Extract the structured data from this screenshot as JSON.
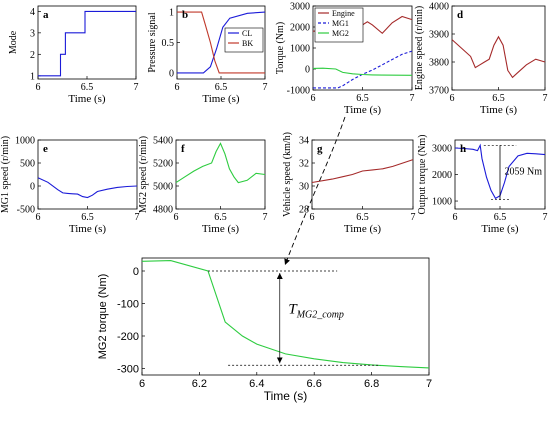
{
  "chart_data": [
    {
      "id": "a",
      "type": "line",
      "panel_label": "a",
      "xlabel": "Time (s)",
      "ylabel": "Mode",
      "xlim": [
        6,
        7
      ],
      "ylim": [
        0.85,
        4.25
      ],
      "xticks": [
        "6",
        "6.5",
        "7"
      ],
      "yticks": [
        "1",
        "2",
        "3",
        "4"
      ],
      "ytick_values": [
        1,
        2,
        3,
        4
      ],
      "series": [
        {
          "color": "#1b1bd8",
          "style": "solid",
          "x": [
            6,
            6.23,
            6.23,
            6.28,
            6.28,
            6.48,
            6.48,
            7
          ],
          "y": [
            1,
            1,
            2,
            2,
            3,
            3,
            4,
            4
          ]
        }
      ]
    },
    {
      "id": "b",
      "type": "line",
      "panel_label": "b",
      "xlabel": "Time (s)",
      "ylabel": "Pressure signal",
      "xlim": [
        6,
        7
      ],
      "ylim": [
        -0.1,
        1.1
      ],
      "xticks": [
        "6",
        "6.5",
        "7"
      ],
      "yticks": [
        "0",
        "0.5",
        "1"
      ],
      "ytick_values": [
        0,
        0.5,
        1
      ],
      "legend": {
        "position": "right",
        "entries": [
          "CL",
          "BK"
        ]
      },
      "series": [
        {
          "name": "CL",
          "color": "#1b1bd8",
          "style": "solid",
          "x": [
            6,
            6.3,
            6.38,
            6.45,
            6.52,
            6.6,
            6.8,
            7
          ],
          "y": [
            0,
            0,
            0.1,
            0.4,
            0.75,
            0.9,
            0.98,
            1
          ]
        },
        {
          "name": "BK",
          "color": "#c0392b",
          "style": "solid",
          "x": [
            6,
            6.28,
            6.32,
            6.38,
            6.43,
            6.48,
            7
          ],
          "y": [
            1,
            1,
            0.8,
            0.5,
            0.2,
            0,
            0
          ]
        }
      ]
    },
    {
      "id": "c",
      "type": "line",
      "panel_label": "c",
      "xlabel": "Time (s)",
      "ylabel": "Torque (Nm)",
      "xlim": [
        6,
        7
      ],
      "ylim": [
        -1000,
        3000
      ],
      "xticks": [
        "6",
        "6.5",
        "7"
      ],
      "yticks": [
        "-1000",
        "0",
        "1000",
        "2000",
        "3000"
      ],
      "ytick_values": [
        -1000,
        0,
        1000,
        2000,
        3000
      ],
      "legend": {
        "position": "top-left",
        "entries": [
          "Engine",
          "MG1",
          "MG2"
        ]
      },
      "series": [
        {
          "name": "Engine",
          "color": "#a52a2a",
          "style": "solid",
          "x": [
            6,
            6.2,
            6.25,
            6.3,
            6.35,
            6.4,
            6.45,
            6.5,
            6.55,
            6.6,
            6.7,
            6.8,
            6.9,
            7
          ],
          "y": [
            1800,
            1850,
            1950,
            1900,
            1700,
            1600,
            1800,
            2100,
            2250,
            2100,
            1700,
            2200,
            2500,
            2350
          ]
        },
        {
          "name": "MG1",
          "color": "#1b1bd8",
          "style": "dashed",
          "x": [
            6,
            6.25,
            6.3,
            6.4,
            6.5,
            6.6,
            6.7,
            6.8,
            6.9,
            7
          ],
          "y": [
            -900,
            -900,
            -800,
            -500,
            -250,
            -50,
            200,
            450,
            700,
            850
          ]
        },
        {
          "name": "MG2",
          "color": "#2ecc40",
          "style": "solid",
          "x": [
            6,
            6.1,
            6.23,
            6.3,
            6.4,
            6.5,
            6.6,
            6.7,
            7
          ],
          "y": [
            30,
            40,
            0,
            -160,
            -230,
            -260,
            -280,
            -290,
            -300
          ]
        }
      ]
    },
    {
      "id": "d",
      "type": "line",
      "panel_label": "d",
      "xlabel": "Time (s)",
      "ylabel": "Engine speed (r/min)",
      "xlim": [
        6,
        7
      ],
      "ylim": [
        3700,
        4000
      ],
      "xticks": [
        "6",
        "6.5",
        "7"
      ],
      "yticks": [
        "3700",
        "3800",
        "3900",
        "4000"
      ],
      "ytick_values": [
        3700,
        3800,
        3900,
        4000
      ],
      "series": [
        {
          "color": "#a52a2a",
          "style": "solid",
          "x": [
            6,
            6.1,
            6.2,
            6.25,
            6.3,
            6.35,
            6.4,
            6.45,
            6.5,
            6.55,
            6.6,
            6.65,
            6.7,
            6.8,
            6.9,
            7
          ],
          "y": [
            3880,
            3850,
            3820,
            3780,
            3790,
            3800,
            3810,
            3860,
            3890,
            3860,
            3770,
            3745,
            3760,
            3790,
            3810,
            3800
          ]
        }
      ]
    },
    {
      "id": "e",
      "type": "line",
      "panel_label": "e",
      "xlabel": "Time (s)",
      "ylabel": "MG1 speed (r/min)",
      "xlim": [
        6,
        7
      ],
      "ylim": [
        -500,
        1000
      ],
      "xticks": [
        "6",
        "6.5",
        "7"
      ],
      "yticks": [
        "-500",
        "0",
        "500",
        "1000"
      ],
      "ytick_values": [
        -500,
        0,
        500,
        1000
      ],
      "series": [
        {
          "color": "#1b1bd8",
          "style": "solid",
          "x": [
            6,
            6.1,
            6.2,
            6.25,
            6.3,
            6.35,
            6.4,
            6.45,
            6.5,
            6.55,
            6.6,
            6.7,
            6.8,
            6.9,
            7
          ],
          "y": [
            180,
            80,
            -80,
            -150,
            -160,
            -170,
            -175,
            -230,
            -250,
            -200,
            -120,
            -70,
            -30,
            -10,
            0
          ]
        }
      ]
    },
    {
      "id": "f",
      "type": "line",
      "panel_label": "f",
      "xlabel": "Time (s)",
      "ylabel": "MG2 speed (r/min)",
      "xlim": [
        6,
        7
      ],
      "ylim": [
        4800,
        5400
      ],
      "xticks": [
        "6",
        "6.5",
        "7"
      ],
      "yticks": [
        "4800",
        "5000",
        "5200",
        "5400"
      ],
      "ytick_values": [
        4800,
        5000,
        5200,
        5400
      ],
      "series": [
        {
          "color": "#2ecc40",
          "style": "solid",
          "x": [
            6,
            6.1,
            6.2,
            6.3,
            6.4,
            6.45,
            6.5,
            6.55,
            6.6,
            6.65,
            6.7,
            6.8,
            6.9,
            7
          ],
          "y": [
            5030,
            5080,
            5130,
            5170,
            5200,
            5300,
            5370,
            5280,
            5150,
            5080,
            5030,
            5050,
            5110,
            5100
          ]
        }
      ]
    },
    {
      "id": "g",
      "type": "line",
      "panel_label": "g",
      "xlabel": "Time (s)",
      "ylabel": "Vehicle speed (km/h)",
      "xlim": [
        6,
        7
      ],
      "ylim": [
        28,
        34
      ],
      "xticks": [
        "6",
        "6.5",
        "7"
      ],
      "yticks": [
        "28",
        "30",
        "32",
        "34"
      ],
      "ytick_values": [
        28,
        30,
        32,
        34
      ],
      "series": [
        {
          "color": "#a52a2a",
          "style": "solid",
          "x": [
            6,
            6.2,
            6.3,
            6.4,
            6.5,
            6.6,
            6.7,
            6.8,
            7
          ],
          "y": [
            30.3,
            30.6,
            30.8,
            31.0,
            31.3,
            31.4,
            31.5,
            31.7,
            32.3
          ]
        }
      ]
    },
    {
      "id": "h",
      "type": "line",
      "panel_label": "h",
      "xlabel": "Time (s)",
      "ylabel": "Output torque (Nm)",
      "xlim": [
        6,
        7
      ],
      "ylim": [
        700,
        3300
      ],
      "xticks": [
        "6",
        "6.5",
        "7"
      ],
      "yticks": [
        "1000",
        "2000",
        "3000"
      ],
      "ytick_values": [
        1000,
        2000,
        3000
      ],
      "annotation": "2059 Nm",
      "series": [
        {
          "color": "#1b1bd8",
          "style": "solid",
          "x": [
            6,
            6.1,
            6.2,
            6.25,
            6.28,
            6.3,
            6.35,
            6.4,
            6.45,
            6.5,
            6.55,
            6.6,
            6.7,
            6.8,
            6.9,
            7
          ],
          "y": [
            3000,
            2980,
            2950,
            2900,
            3100,
            2600,
            1900,
            1400,
            1100,
            1200,
            1700,
            2300,
            2700,
            2800,
            2780,
            2750
          ]
        }
      ]
    },
    {
      "id": "zoom",
      "type": "line",
      "xlabel": "Time (s)",
      "ylabel": "MG2 torque (Nm)",
      "xlim": [
        6,
        7
      ],
      "ylim": [
        -320,
        40
      ],
      "xticks": [
        "6",
        "6.2",
        "6.4",
        "6.6",
        "6.8",
        "7"
      ],
      "yticks": [
        "0",
        "-100",
        "-200",
        "-300"
      ],
      "ytick_values": [
        0,
        -100,
        -200,
        -300
      ],
      "annotation": "T_{MG2_comp}",
      "series": [
        {
          "color": "#2ecc40",
          "style": "solid",
          "x": [
            6,
            6.1,
            6.23,
            6.29,
            6.35,
            6.4,
            6.5,
            6.6,
            6.7,
            6.8,
            6.9,
            7
          ],
          "y": [
            30,
            32,
            0,
            -157,
            -200,
            -225,
            -255,
            -270,
            -282,
            -289,
            -294,
            -298
          ]
        }
      ]
    }
  ]
}
